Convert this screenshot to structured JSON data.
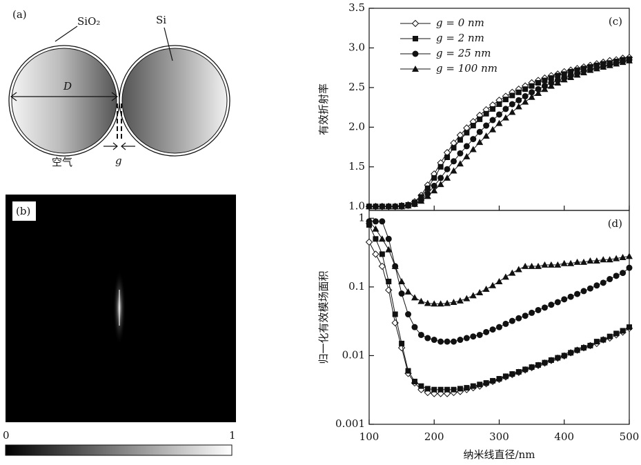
{
  "panel_a": {
    "label": "(a)",
    "shell": "SiO₂",
    "core": "Si",
    "diameter": "D",
    "medium": "空气",
    "gap": "g"
  },
  "panel_b": {
    "label": "(b)",
    "scale_min": "0",
    "scale_max": "1"
  },
  "chart_data": [
    {
      "type": "line",
      "panel_label": "(c)",
      "y_label": "有效折射率",
      "legend": "upper left",
      "x": [
        100,
        110,
        120,
        130,
        140,
        150,
        160,
        170,
        180,
        190,
        200,
        210,
        220,
        230,
        240,
        250,
        260,
        270,
        280,
        290,
        300,
        310,
        320,
        330,
        340,
        350,
        360,
        370,
        380,
        390,
        400,
        410,
        420,
        430,
        440,
        450,
        460,
        470,
        480,
        490,
        500
      ],
      "xlim": [
        100,
        500
      ],
      "xticks": [
        100,
        200,
        300,
        400,
        500
      ],
      "ylim": [
        0.95,
        3.5
      ],
      "yticks": [
        {
          "value": 1.0,
          "label": "1.0"
        },
        {
          "value": 1.5,
          "label": "1.5"
        },
        {
          "value": 2.0,
          "label": "2.0"
        },
        {
          "value": 2.5,
          "label": "2.5"
        },
        {
          "value": 3.0,
          "label": "3.0"
        },
        {
          "value": 3.5,
          "label": "3.5"
        }
      ],
      "series": [
        {
          "name": "g = 0 nm",
          "color": "#111111",
          "marker": "diamond-open",
          "values": [
            1.0,
            1.0,
            1.0,
            1.0,
            1.0,
            1.01,
            1.02,
            1.06,
            1.14,
            1.27,
            1.41,
            1.55,
            1.68,
            1.8,
            1.9,
            1.99,
            2.07,
            2.15,
            2.22,
            2.28,
            2.34,
            2.39,
            2.44,
            2.48,
            2.52,
            2.56,
            2.59,
            2.62,
            2.65,
            2.67,
            2.7,
            2.72,
            2.74,
            2.76,
            2.78,
            2.8,
            2.82,
            2.84,
            2.85,
            2.87,
            2.88
          ]
        },
        {
          "name": "g = 2 nm",
          "color": "#111111",
          "marker": "square",
          "values": [
            1.0,
            1.0,
            1.0,
            1.0,
            1.0,
            1.01,
            1.02,
            1.05,
            1.12,
            1.23,
            1.36,
            1.5,
            1.62,
            1.74,
            1.84,
            1.93,
            2.02,
            2.1,
            2.17,
            2.23,
            2.29,
            2.35,
            2.4,
            2.44,
            2.48,
            2.52,
            2.56,
            2.59,
            2.62,
            2.65,
            2.67,
            2.7,
            2.72,
            2.74,
            2.76,
            2.78,
            2.8,
            2.81,
            2.83,
            2.85,
            2.86
          ]
        },
        {
          "name": "g = 25 nm",
          "color": "#111111",
          "marker": "circle",
          "values": [
            1.0,
            1.0,
            1.0,
            1.0,
            1.0,
            1.0,
            1.01,
            1.03,
            1.08,
            1.16,
            1.26,
            1.36,
            1.47,
            1.57,
            1.67,
            1.76,
            1.85,
            1.94,
            2.02,
            2.09,
            2.16,
            2.23,
            2.29,
            2.34,
            2.39,
            2.44,
            2.48,
            2.52,
            2.56,
            2.59,
            2.62,
            2.65,
            2.68,
            2.71,
            2.73,
            2.75,
            2.77,
            2.79,
            2.81,
            2.83,
            2.85
          ]
        },
        {
          "name": "g = 100 nm",
          "color": "#111111",
          "marker": "triangle",
          "values": [
            1.0,
            1.0,
            1.0,
            1.0,
            1.0,
            1.0,
            1.01,
            1.03,
            1.07,
            1.13,
            1.2,
            1.28,
            1.36,
            1.45,
            1.54,
            1.63,
            1.72,
            1.81,
            1.89,
            1.97,
            2.05,
            2.12,
            2.19,
            2.26,
            2.32,
            2.38,
            2.43,
            2.48,
            2.52,
            2.56,
            2.6,
            2.63,
            2.66,
            2.69,
            2.72,
            2.74,
            2.76,
            2.78,
            2.8,
            2.82,
            2.84
          ]
        }
      ]
    },
    {
      "type": "line",
      "panel_label": "(d)",
      "y_label": "归一化有效模场面积",
      "x_label": "纳米线直径/nm",
      "log_y": true,
      "x": [
        100,
        110,
        120,
        130,
        140,
        150,
        160,
        170,
        180,
        190,
        200,
        210,
        220,
        230,
        240,
        250,
        260,
        270,
        280,
        290,
        300,
        310,
        320,
        330,
        340,
        350,
        360,
        370,
        380,
        390,
        400,
        410,
        420,
        430,
        440,
        450,
        460,
        470,
        480,
        490,
        500
      ],
      "xlim": [
        100,
        500
      ],
      "xticks": [
        100,
        200,
        300,
        400,
        500
      ],
      "ylim": [
        0.001,
        1.3
      ],
      "yticks": [
        0.001,
        0.01,
        0.1,
        1
      ],
      "series": [
        {
          "name": "g = 0 nm",
          "color": "#111111",
          "marker": "diamond-open",
          "values": [
            0.45,
            0.3,
            0.2,
            0.09,
            0.03,
            0.013,
            0.0055,
            0.004,
            0.0032,
            0.0029,
            0.0028,
            0.0028,
            0.0028,
            0.0029,
            0.003,
            0.0032,
            0.0034,
            0.0036,
            0.0039,
            0.0042,
            0.0045,
            0.0049,
            0.0053,
            0.0057,
            0.0062,
            0.0067,
            0.0072,
            0.0078,
            0.0085,
            0.0092,
            0.0099,
            0.011,
            0.012,
            0.013,
            0.014,
            0.015,
            0.017,
            0.018,
            0.02,
            0.022,
            0.025
          ]
        },
        {
          "name": "g = 2 nm",
          "color": "#111111",
          "marker": "square",
          "values": [
            0.8,
            0.5,
            0.3,
            0.12,
            0.04,
            0.015,
            0.006,
            0.0042,
            0.0036,
            0.0033,
            0.0032,
            0.0032,
            0.0032,
            0.0032,
            0.0033,
            0.0034,
            0.0036,
            0.0038,
            0.004,
            0.0043,
            0.0046,
            0.005,
            0.0054,
            0.0058,
            0.0063,
            0.0068,
            0.0073,
            0.0079,
            0.0086,
            0.0093,
            0.01,
            0.011,
            0.012,
            0.013,
            0.014,
            0.016,
            0.017,
            0.019,
            0.021,
            0.023,
            0.026
          ]
        },
        {
          "name": "g = 25 nm",
          "color": "#111111",
          "marker": "circle",
          "values": [
            0.9,
            0.9,
            0.9,
            0.5,
            0.2,
            0.08,
            0.04,
            0.026,
            0.02,
            0.018,
            0.017,
            0.016,
            0.016,
            0.016,
            0.017,
            0.018,
            0.019,
            0.02,
            0.022,
            0.024,
            0.026,
            0.029,
            0.032,
            0.035,
            0.038,
            0.042,
            0.046,
            0.05,
            0.055,
            0.06,
            0.066,
            0.072,
            0.079,
            0.087,
            0.095,
            0.105,
            0.115,
            0.13,
            0.145,
            0.16,
            0.19
          ]
        },
        {
          "name": "g = 100 nm",
          "color": "#111111",
          "marker": "triangle",
          "values": [
            0.9,
            0.7,
            0.5,
            0.35,
            0.2,
            0.12,
            0.085,
            0.07,
            0.062,
            0.058,
            0.057,
            0.057,
            0.058,
            0.06,
            0.063,
            0.068,
            0.075,
            0.083,
            0.093,
            0.105,
            0.12,
            0.14,
            0.16,
            0.18,
            0.2,
            0.2,
            0.2,
            0.21,
            0.21,
            0.21,
            0.22,
            0.22,
            0.23,
            0.23,
            0.24,
            0.24,
            0.25,
            0.25,
            0.26,
            0.27,
            0.28
          ]
        }
      ]
    }
  ]
}
